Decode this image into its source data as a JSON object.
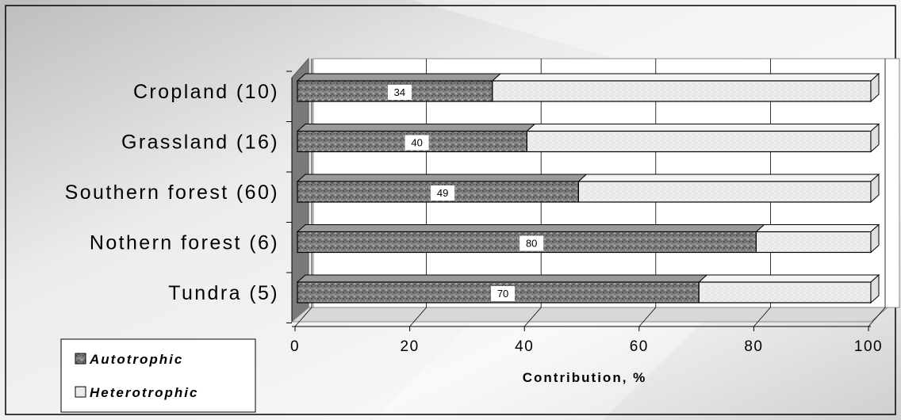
{
  "chart_data": {
    "type": "bar",
    "orientation": "horizontal",
    "stacked": true,
    "categories": [
      "Cropland (10)",
      "Grassland (16)",
      "Southern forest (60)",
      "Nothern forest (6)",
      "Tundra (5)"
    ],
    "series": [
      {
        "name": "Autotrophic",
        "values": [
          34,
          40,
          49,
          80,
          70
        ],
        "data_labels": [
          "34",
          "40",
          "49",
          "80",
          "70"
        ],
        "color": "#7a7a7a"
      },
      {
        "name": "Heterotrophic",
        "values": [
          66,
          60,
          51,
          20,
          30
        ],
        "color": "#ebebeb"
      }
    ],
    "xlabel": "Contribution, %",
    "xlim": [
      0,
      100
    ],
    "xticks": [
      0,
      20,
      40,
      60,
      80,
      100
    ],
    "xtick_labels": [
      "0",
      "20",
      "40",
      "60",
      "80",
      "100"
    ],
    "grid": "vertical",
    "legend": "bottom-left",
    "style": "3d"
  }
}
